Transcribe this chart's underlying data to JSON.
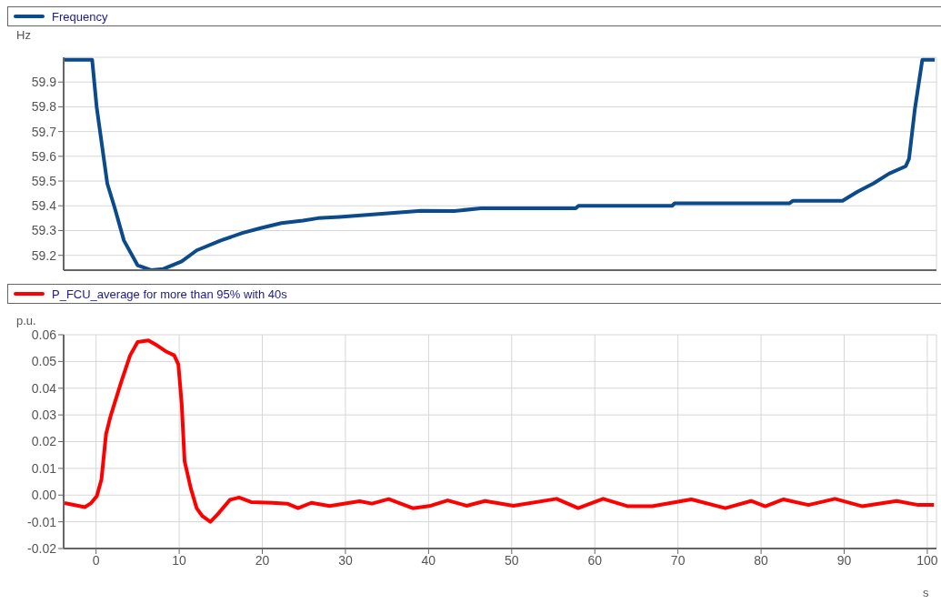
{
  "chart_data": [
    {
      "type": "line",
      "ylabel": "Hz",
      "legend": "top",
      "grid": true,
      "tick_labels": "y",
      "marker": "none",
      "xlim": [
        -3.9,
        101.1
      ],
      "xticks": [
        0,
        10,
        20,
        30,
        40,
        50,
        60,
        70,
        80,
        90,
        100
      ],
      "ylim": [
        59.14,
        60.0
      ],
      "yticks": [
        59.2,
        59.3,
        59.4,
        59.5,
        59.6,
        59.7,
        59.8,
        59.9
      ],
      "series": [
        {
          "name": "Frequency",
          "color": "#0b4a8b",
          "x": [
            -3.9,
            -0.47,
            0.07,
            1.35,
            2.26,
            3.35,
            4.99,
            6.6,
            8.1,
            10.3,
            12.1,
            15.0,
            17.6,
            19.8,
            22.3,
            24.9,
            26.7,
            29.3,
            33.3,
            39.1,
            43.1,
            46.3,
            57.7,
            58.04,
            69.3,
            69.6,
            83.4,
            83.8,
            89.8,
            91.6,
            93.5,
            95.4,
            97.4,
            97.8,
            98.5,
            99.4,
            100.9
          ],
          "values": [
            59.99,
            59.99,
            59.8,
            59.49,
            59.39,
            59.26,
            59.16,
            59.14,
            59.145,
            59.175,
            59.22,
            59.26,
            59.29,
            59.31,
            59.33,
            59.34,
            59.35,
            59.355,
            59.365,
            59.38,
            59.379,
            59.39,
            59.39,
            59.4,
            59.4,
            59.41,
            59.41,
            59.42,
            59.42,
            59.457,
            59.49,
            59.53,
            59.56,
            59.59,
            59.79,
            59.99,
            59.99
          ]
        }
      ]
    },
    {
      "type": "line",
      "ylabel": "p.u.",
      "xlabel": "s",
      "legend": "top",
      "grid": true,
      "marker": "none",
      "xlim": [
        -3.9,
        101.1
      ],
      "xticks": [
        0,
        10,
        20,
        30,
        40,
        50,
        60,
        70,
        80,
        90,
        100
      ],
      "ylim": [
        -0.02,
        0.06
      ],
      "yticks": [
        -0.02,
        -0.01,
        {
          "value": 0,
          "label": "0.00"
        },
        0.01,
        0.02,
        0.03,
        0.04,
        0.05,
        0.06
      ],
      "series": [
        {
          "name": "P_FCU_average for more than 95% with 40s",
          "color": "#ff0000",
          "x": [
            -3.8,
            -1.35,
            -0.6,
            0.1,
            0.65,
            1.2,
            1.75,
            3.0,
            4.1,
            5.0,
            6.3,
            7.4,
            8.5,
            9.4,
            9.9,
            10.3,
            10.65,
            11.4,
            12.1,
            12.8,
            13.75,
            14.65,
            16.1,
            17.2,
            18.65,
            21.2,
            23.0,
            24.3,
            25.9,
            28.1,
            31.7,
            33.2,
            35.2,
            38.1,
            40.1,
            42.3,
            44.6,
            46.8,
            50.2,
            55.4,
            58.0,
            61.0,
            64.0,
            66.9,
            71.6,
            75.7,
            78.8,
            80.5,
            82.7,
            85.7,
            88.9,
            92.2,
            96.3,
            98.9,
            100.8
          ],
          "values": [
            -0.003,
            -0.0045,
            -0.003,
            -0.0003,
            0.0059,
            0.0228,
            0.0296,
            0.0421,
            0.0523,
            0.0573,
            0.0579,
            0.0559,
            0.0536,
            0.0523,
            0.0489,
            0.0342,
            0.0127,
            0.0025,
            -0.0049,
            -0.0079,
            -0.01,
            -0.0071,
            -0.0018,
            -0.0009,
            -0.0026,
            -0.0029,
            -0.0032,
            -0.0049,
            -0.0029,
            -0.0041,
            -0.0023,
            -0.0032,
            -0.0015,
            -0.0049,
            -0.0041,
            -0.002,
            -0.004,
            -0.0022,
            -0.004,
            -0.0014,
            -0.0049,
            -0.0014,
            -0.0042,
            -0.0042,
            -0.0016,
            -0.0049,
            -0.0022,
            -0.0042,
            -0.0016,
            -0.0037,
            -0.0014,
            -0.0042,
            -0.0022,
            -0.0037,
            -0.0037
          ]
        }
      ]
    }
  ]
}
